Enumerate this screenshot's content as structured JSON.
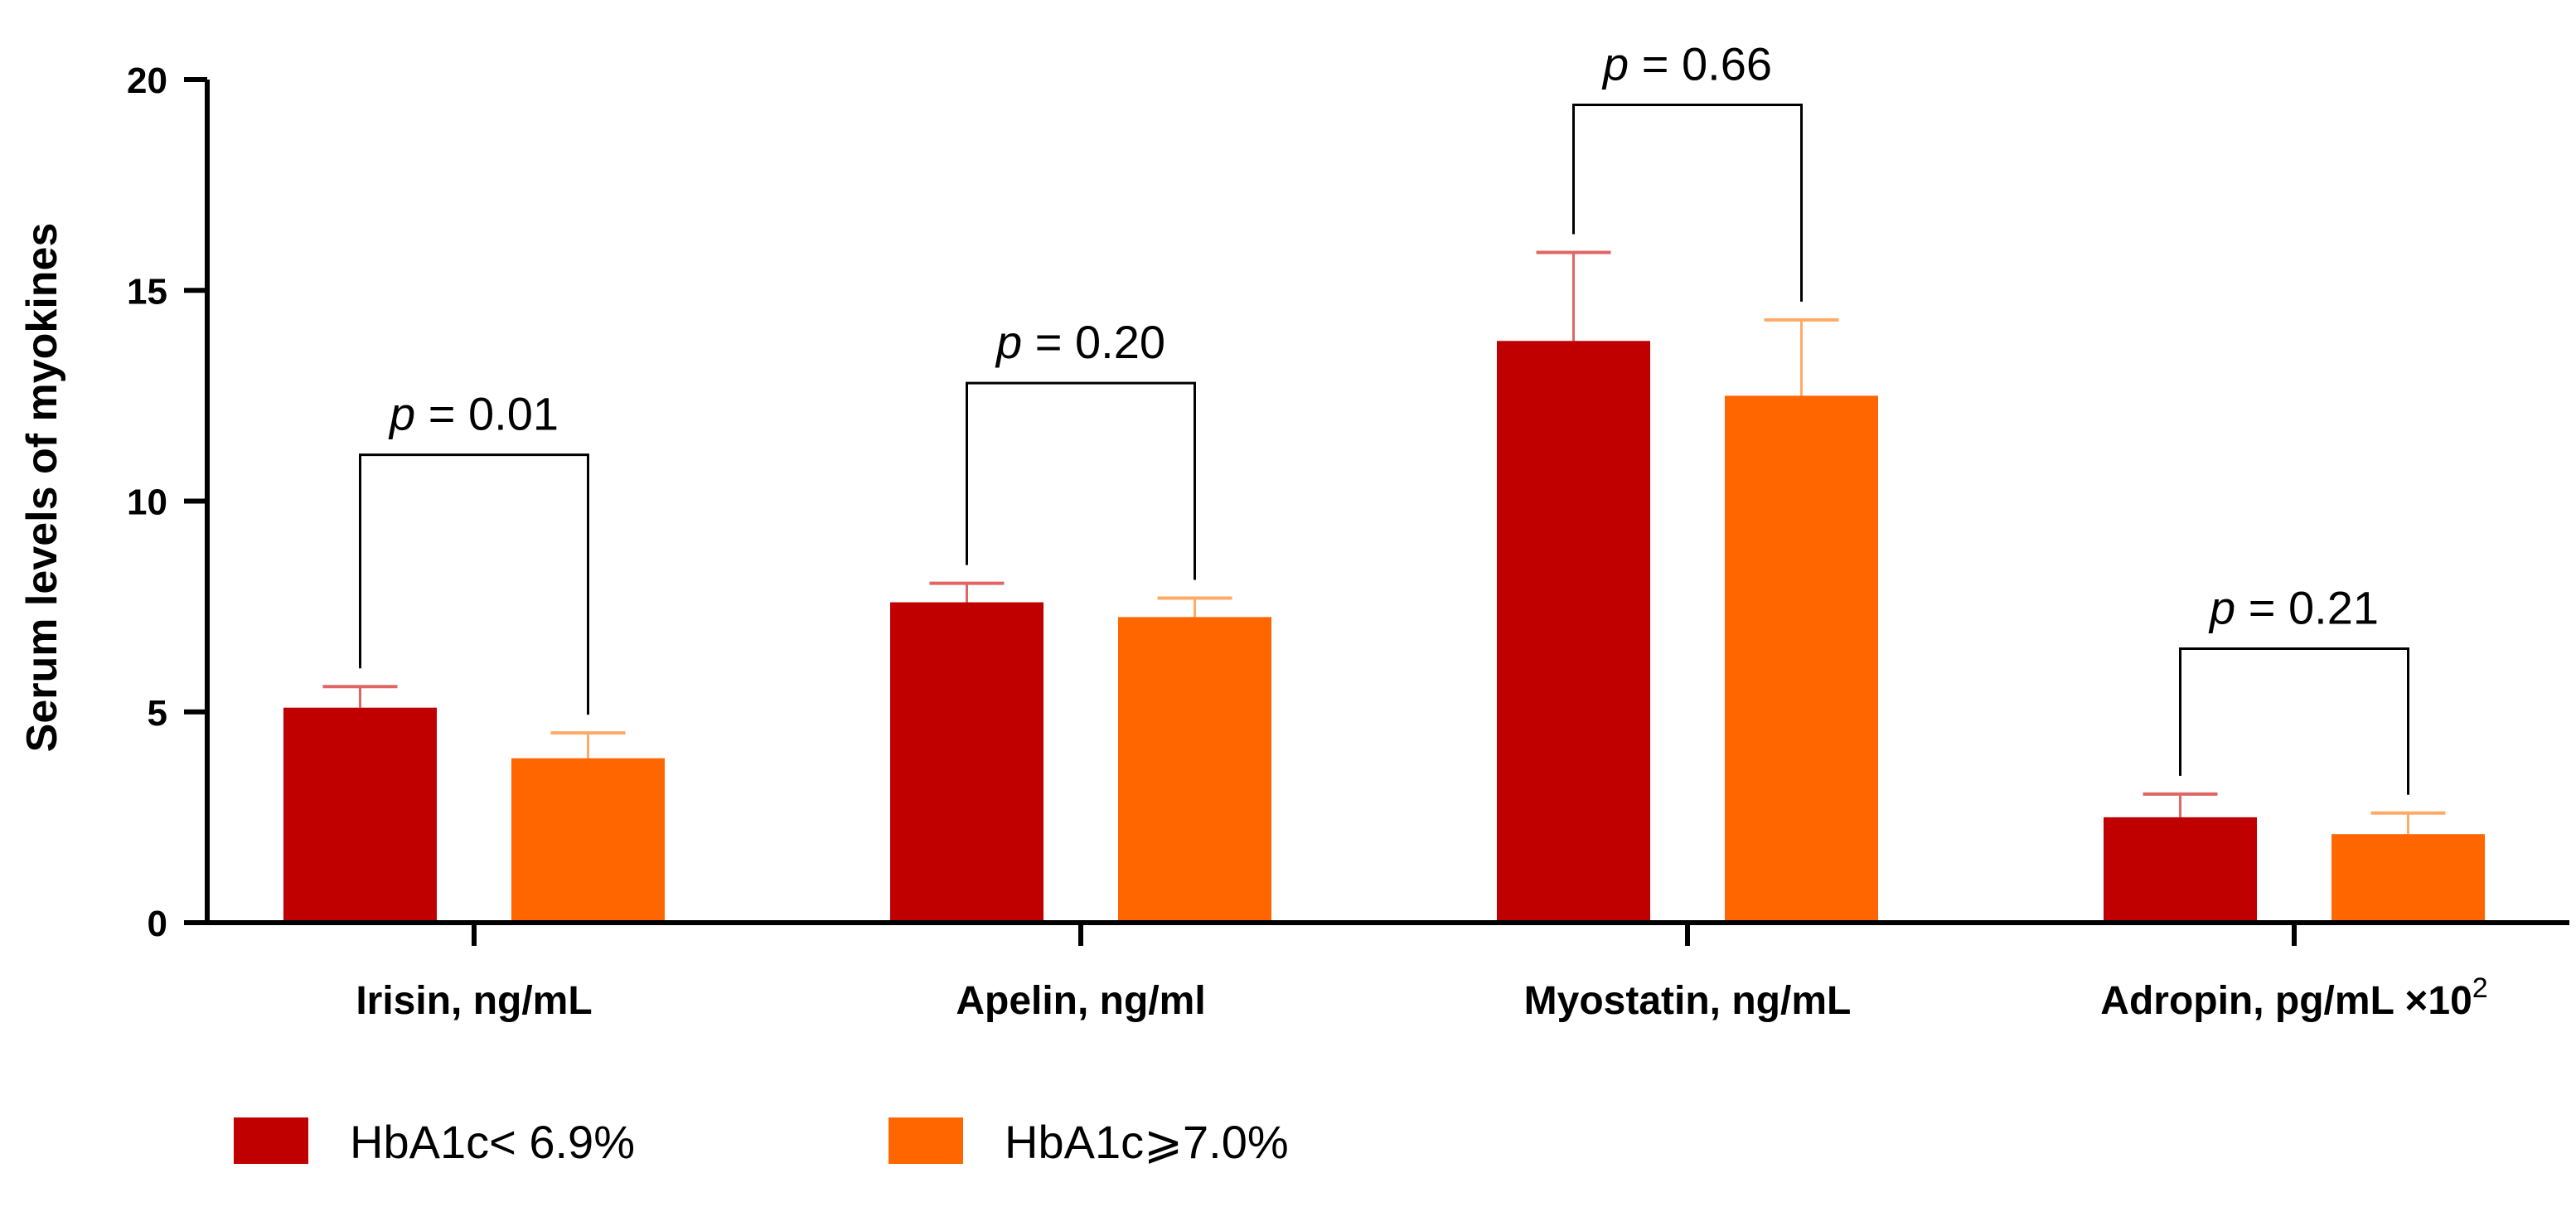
{
  "chart_data": {
    "type": "bar",
    "title": "",
    "xlabel": "",
    "ylabel": "Serum levels of myokines",
    "ylim": [
      0,
      20
    ],
    "yticks": [
      0,
      5,
      10,
      15,
      20
    ],
    "categories": [
      {
        "label": "Irisin, ng/mL",
        "superscript": ""
      },
      {
        "label": "Apelin, ng/ml",
        "superscript": ""
      },
      {
        "label": "Myostatin, ng/mL",
        "superscript": ""
      },
      {
        "label": "Adropin, pg/mL ×10",
        "superscript": "2"
      }
    ],
    "series": [
      {
        "name": "HbA1c< 6.9%",
        "color": "#c00000",
        "error_color": "#e06666",
        "values": [
          5.1,
          7.6,
          13.8,
          2.5
        ],
        "errors": [
          0.5,
          0.45,
          2.1,
          0.55
        ]
      },
      {
        "name": "HbA1c⩾7.0%",
        "color": "#ff6600",
        "error_color": "#ffaa66",
        "values": [
          3.9,
          7.25,
          12.5,
          2.1
        ],
        "errors": [
          0.6,
          0.45,
          1.8,
          0.5
        ]
      }
    ],
    "annotations": [
      {
        "p_symbol": "p",
        "text": " = 0.01",
        "bracket_top": 11.1
      },
      {
        "p_symbol": "p",
        "text": " = 0.20",
        "bracket_top": 12.8
      },
      {
        "p_symbol": "p",
        "text": " = 0.66",
        "bracket_top": 19.4
      },
      {
        "p_symbol": "p",
        "text": " = 0.21",
        "bracket_top": 6.5
      }
    ],
    "legend": {
      "position": "bottom-left"
    }
  }
}
